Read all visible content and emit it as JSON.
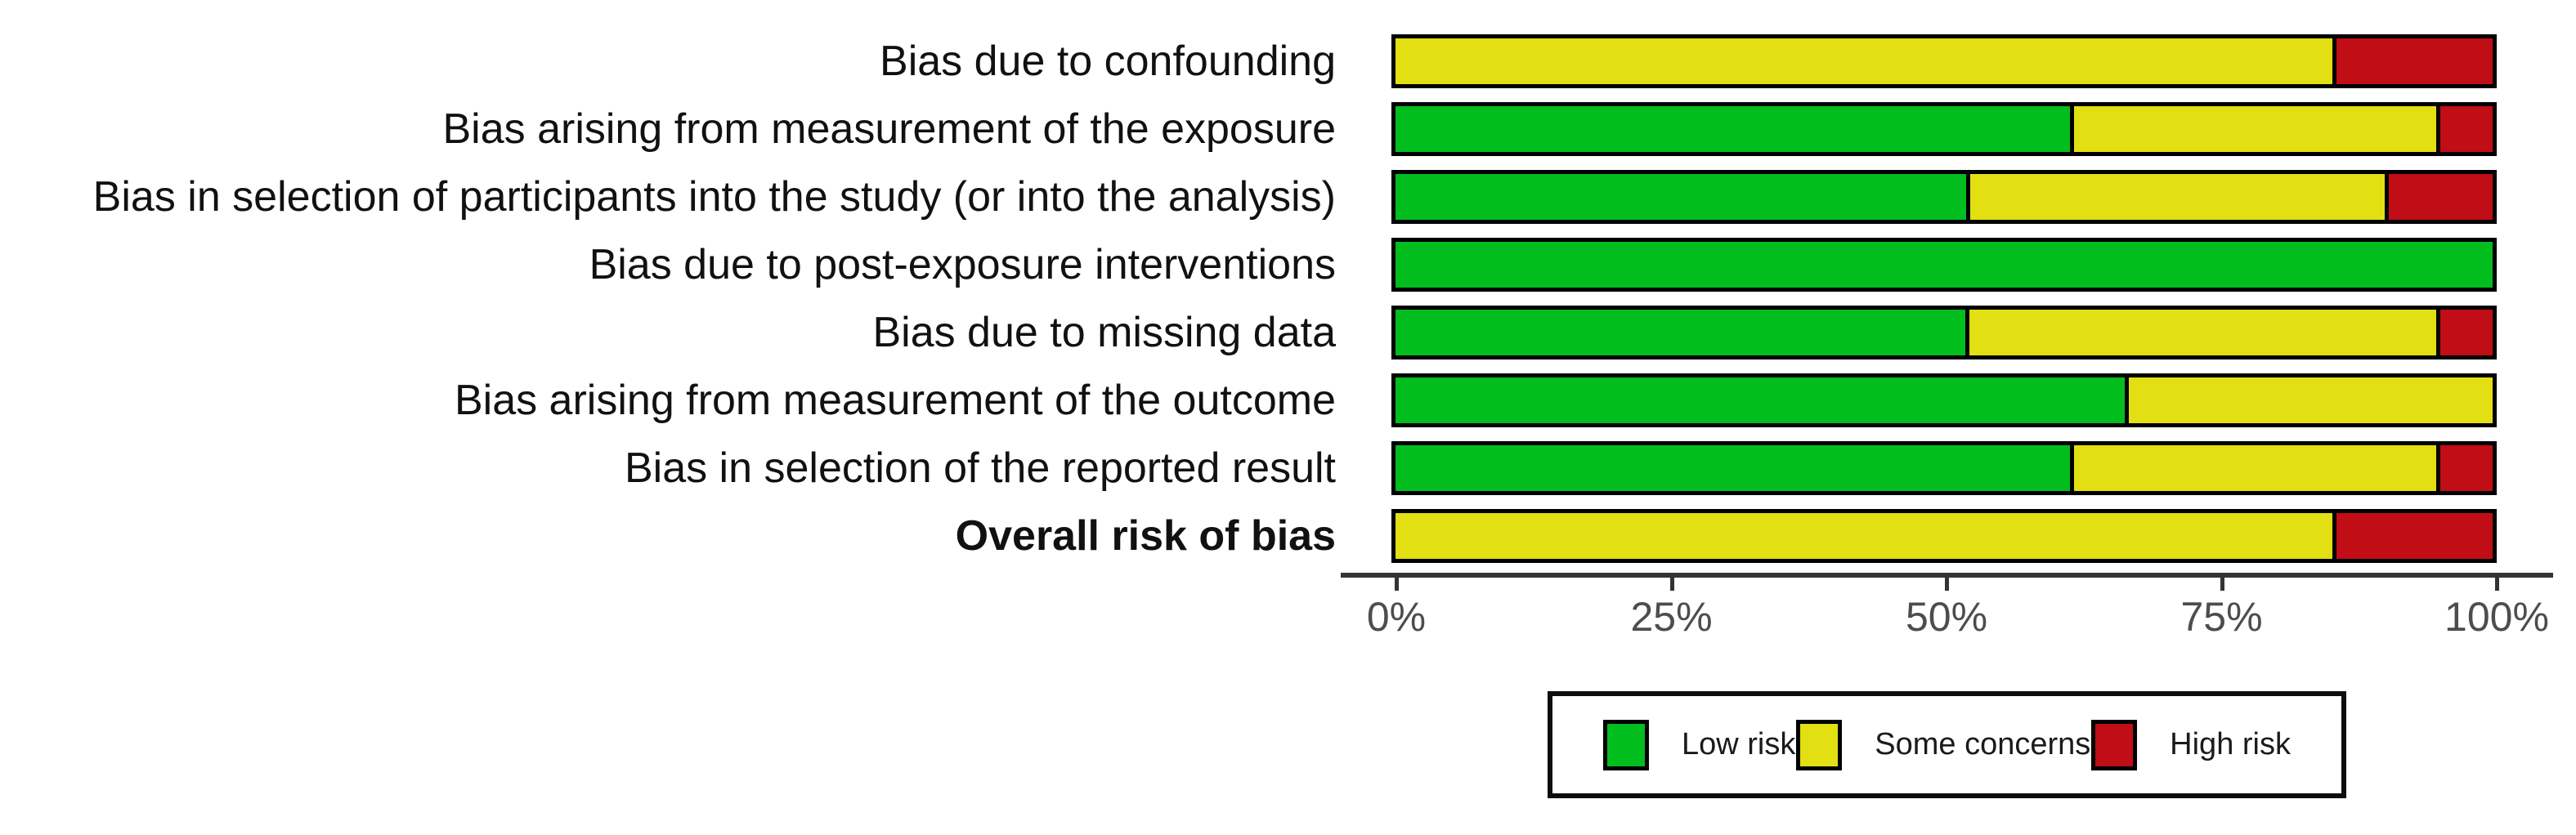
{
  "chart_data": {
    "type": "bar",
    "orientation": "horizontal",
    "stacked": true,
    "unit": "percent",
    "title": "",
    "xlabel": "",
    "ylabel": "",
    "x_axis": {
      "range": [
        0,
        100
      ],
      "tick_labels": [
        "0%",
        "25%",
        "50%",
        "75%",
        "100%"
      ],
      "tick_values": [
        0,
        25,
        50,
        75,
        100
      ]
    },
    "grid": false,
    "categories": [
      {
        "label": "Bias due to confounding",
        "bold": false
      },
      {
        "label": "Bias arising from measurement of the exposure",
        "bold": false
      },
      {
        "label": "Bias in selection of participants into the study (or into the analysis)",
        "bold": false
      },
      {
        "label": "Bias due to post-exposure interventions",
        "bold": false
      },
      {
        "label": "Bias due to missing data",
        "bold": false
      },
      {
        "label": "Bias arising from measurement of the outcome",
        "bold": false
      },
      {
        "label": "Bias in selection of the reported result",
        "bold": false
      },
      {
        "label": "Overall risk of bias",
        "bold": true
      }
    ],
    "series": [
      {
        "name": "Low risk",
        "color": "#02BD1E",
        "values": [
          0,
          61.9,
          52.4,
          100,
          52.4,
          66.7,
          61.9,
          0
        ]
      },
      {
        "name": "Some concerns",
        "color": "#E2DF12",
        "values": [
          85.7,
          33.3,
          38.1,
          0,
          42.9,
          33.3,
          33.3,
          85.7
        ]
      },
      {
        "name": "High risk",
        "color": "#C00D16",
        "values": [
          14.3,
          4.8,
          9.5,
          0,
          4.8,
          0,
          4.8,
          14.3
        ]
      }
    ],
    "legend": {
      "position": "bottom",
      "items": [
        {
          "label": "Low risk",
          "color": "#02BD1E"
        },
        {
          "label": "Some concerns",
          "color": "#E2DF12"
        },
        {
          "label": "High risk",
          "color": "#C00D16"
        }
      ]
    }
  },
  "colors": {
    "low_risk": "#02BD1E",
    "some_concerns": "#E2DF12",
    "high_risk": "#C00D16",
    "axis": "#333333",
    "tick_label": "#4d4d4d",
    "background": "#ffffff"
  }
}
